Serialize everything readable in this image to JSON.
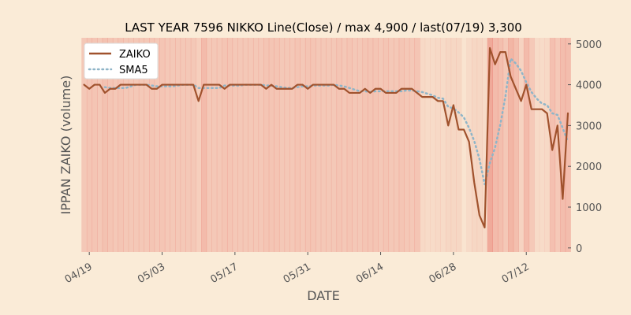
{
  "chart_data": {
    "type": "line",
    "title": "LAST YEAR 7596 NIKKO Line(Close) / max 4,900 / last(07/19) 3,300",
    "xlabel": "DATE",
    "ylabel": "IPPAN ZAIKO (volume)",
    "x_start": "04/18",
    "x_end": "07/19",
    "xlim": [
      "04/17",
      "07/20"
    ],
    "ylim": [
      -100,
      5150
    ],
    "x_ticks": [
      "04/19",
      "05/03",
      "05/17",
      "05/31",
      "06/14",
      "06/28",
      "07/12"
    ],
    "y_ticks": [
      0,
      1000,
      2000,
      3000,
      4000,
      5000
    ],
    "y_tick_labels": [
      "0",
      "1000",
      "2000",
      "3000",
      "4000",
      "5000"
    ],
    "legend_position": "top-left",
    "grid": false,
    "background_shading": "red-tinted vertical bands by day",
    "series": [
      {
        "name": "ZAIKO",
        "color": "#a0522d",
        "style": "solid",
        "values": [
          4000,
          3900,
          4000,
          4000,
          3800,
          3900,
          3900,
          4000,
          4000,
          4000,
          4000,
          4000,
          4000,
          3900,
          3900,
          4000,
          4000,
          4000,
          4000,
          4000,
          4000,
          4000,
          3600,
          4000,
          4000,
          4000,
          4000,
          3900,
          4000,
          4000,
          4000,
          4000,
          4000,
          4000,
          4000,
          3900,
          4000,
          3900,
          3900,
          3900,
          3900,
          4000,
          4000,
          3900,
          4000,
          4000,
          4000,
          4000,
          4000,
          3900,
          3900,
          3800,
          3800,
          3800,
          3900,
          3800,
          3900,
          3900,
          3800,
          3800,
          3800,
          3900,
          3900,
          3900,
          3800,
          3700,
          3700,
          3700,
          3600,
          3600,
          3000,
          3500,
          2900,
          2900,
          2600,
          1600,
          800,
          500,
          4900,
          4500,
          4800,
          4800,
          4200,
          3900,
          3600,
          4000,
          3400,
          3400,
          3400,
          3300,
          2400,
          3000,
          1200,
          3300
        ]
      },
      {
        "name": "SMA5",
        "color": "#8fb5c8",
        "style": "dotted",
        "values": [
          null,
          null,
          null,
          null,
          3940,
          3920,
          3920,
          3920,
          3920,
          3960,
          4000,
          4000,
          4000,
          3980,
          3960,
          3960,
          3960,
          3960,
          3980,
          4000,
          4000,
          4000,
          3920,
          3920,
          3920,
          3920,
          3920,
          3980,
          3980,
          3980,
          3980,
          4000,
          4000,
          4000,
          4000,
          3980,
          3980,
          3960,
          3940,
          3920,
          3920,
          3940,
          3960,
          3960,
          3980,
          3980,
          3980,
          3980,
          4000,
          3980,
          3960,
          3920,
          3880,
          3840,
          3840,
          3820,
          3840,
          3840,
          3840,
          3840,
          3840,
          3840,
          3860,
          3860,
          3840,
          3820,
          3780,
          3740,
          3680,
          3660,
          3460,
          3420,
          3320,
          3200,
          2940,
          2620,
          2180,
          1560,
          2080,
          2460,
          3020,
          3720,
          4640,
          4520,
          4340,
          4060,
          3820,
          3660,
          3540,
          3500,
          3300,
          3260,
          2940,
          2600
        ]
      }
    ]
  }
}
